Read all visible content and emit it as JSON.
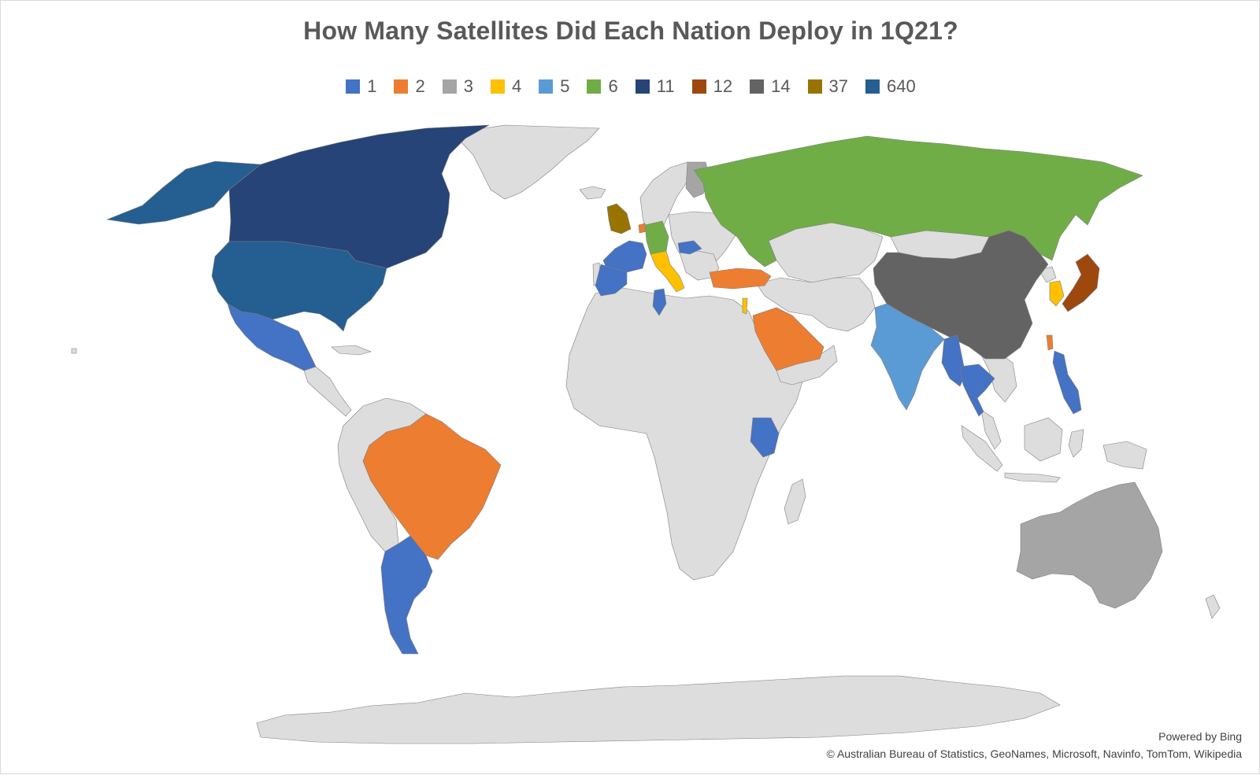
{
  "title": "How Many Satellites Did Each Nation Deploy in 1Q21?",
  "legend": [
    {
      "label": "1",
      "color": "#4472C4"
    },
    {
      "label": "2",
      "color": "#ED7D31"
    },
    {
      "label": "3",
      "color": "#A5A5A5"
    },
    {
      "label": "4",
      "color": "#FFC000"
    },
    {
      "label": "5",
      "color": "#5B9BD5"
    },
    {
      "label": "6",
      "color": "#70AD47"
    },
    {
      "label": "11",
      "color": "#264478"
    },
    {
      "label": "12",
      "color": "#9E480E"
    },
    {
      "label": "14",
      "color": "#636363"
    },
    {
      "label": "37",
      "color": "#997300"
    },
    {
      "label": "640",
      "color": "#255E91"
    }
  ],
  "colors": {
    "no_data_fill": "#DDDDDD",
    "border": "#7F7F7F"
  },
  "countries": [
    {
      "id": "canada",
      "value": "11"
    },
    {
      "id": "usa",
      "value": "640"
    },
    {
      "id": "alaska",
      "value": "640"
    },
    {
      "id": "mexico",
      "value": "1"
    },
    {
      "id": "brazil",
      "value": "2"
    },
    {
      "id": "argentina",
      "value": "1"
    },
    {
      "id": "uk",
      "value": "37"
    },
    {
      "id": "france",
      "value": "1"
    },
    {
      "id": "spain",
      "value": "1"
    },
    {
      "id": "germany",
      "value": "6"
    },
    {
      "id": "netherlands",
      "value": "2"
    },
    {
      "id": "italy",
      "value": "4"
    },
    {
      "id": "hungary",
      "value": "1"
    },
    {
      "id": "finland",
      "value": "3"
    },
    {
      "id": "tunisia",
      "value": "1"
    },
    {
      "id": "turkey",
      "value": "2"
    },
    {
      "id": "saudi-arabia",
      "value": "2"
    },
    {
      "id": "israel",
      "value": "4"
    },
    {
      "id": "kenya",
      "value": "1"
    },
    {
      "id": "russia",
      "value": "6"
    },
    {
      "id": "china",
      "value": "14"
    },
    {
      "id": "india",
      "value": "5"
    },
    {
      "id": "myanmar",
      "value": "1"
    },
    {
      "id": "thailand",
      "value": "1"
    },
    {
      "id": "philippines",
      "value": "1"
    },
    {
      "id": "south-korea",
      "value": "4"
    },
    {
      "id": "japan",
      "value": "12"
    },
    {
      "id": "taiwan",
      "value": "2"
    },
    {
      "id": "australia",
      "value": "3"
    }
  ],
  "credits": {
    "powered_by": "Powered by Bing",
    "sources": "© Australian Bureau of Statistics, GeoNames, Microsoft, Navinfo, TomTom, Wikipedia"
  }
}
